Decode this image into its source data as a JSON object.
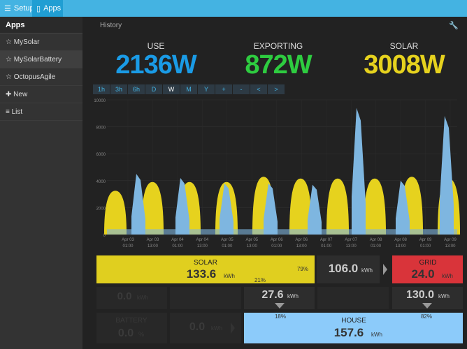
{
  "topbar": {
    "setup": "Setup",
    "apps": "Apps"
  },
  "sidebar": {
    "title": "Apps",
    "items": [
      {
        "label": "MySolar",
        "icon": "☆"
      },
      {
        "label": "MySolarBattery",
        "icon": "☆"
      },
      {
        "label": "OctopusAgile",
        "icon": "☆"
      },
      {
        "label": "New",
        "icon": "✚"
      },
      {
        "label": "List",
        "icon": "≡"
      }
    ]
  },
  "main": {
    "title": "History",
    "stats": {
      "use": {
        "label": "USE",
        "value": "2136W",
        "color": "#1a9be6"
      },
      "exporting": {
        "label": "EXPORTING",
        "value": "872W",
        "color": "#2ecc40"
      },
      "solar": {
        "label": "SOLAR",
        "value": "3008W",
        "color": "#e6d21e"
      }
    },
    "ranges": [
      "1h",
      "3h",
      "6h",
      "D",
      "W",
      "M",
      "Y",
      "+",
      "-",
      "<",
      ">"
    ]
  },
  "chart_data": {
    "type": "area",
    "ylim": [
      0,
      10000
    ],
    "yticks": [
      "0",
      "2000",
      "4000",
      "6000",
      "8000",
      "10000"
    ],
    "xticks": [
      "Apr 03\n01:00",
      "Apr 03\n13:00",
      "Apr 04\n01:00",
      "Apr 04\n13:00",
      "Apr 05\n01:00",
      "Apr 05\n13:00",
      "Apr 06\n01:00",
      "Apr 06\n13:00",
      "Apr 07\n01:00",
      "Apr 07\n13:00",
      "Apr 08\n01:00",
      "Apr 08\n13:00",
      "Apr 09\n01:00",
      "Apr 09\n13:00"
    ],
    "solar_peaks_w": [
      2500,
      3000,
      3000,
      3000,
      3300,
      3200,
      3200,
      3200,
      3300,
      3200
    ],
    "use_peaks_w": [
      4500,
      4200,
      3800,
      3800,
      3700,
      9400,
      4000,
      8800
    ],
    "colors": {
      "solar": "#e6d21e",
      "use": "#7eb6e0"
    }
  },
  "flow": {
    "solar": {
      "label": "SOLAR",
      "value": "133.6",
      "unit": "kWh",
      "pct_a": "79%",
      "pct_b": "21%"
    },
    "export": {
      "value": "106.0",
      "unit": "kWh"
    },
    "grid": {
      "label": "GRID",
      "value": "24.0",
      "unit": "kWh"
    },
    "battery_energy": {
      "value": "0.0",
      "unit": "kWh"
    },
    "to_house_solar": {
      "value": "27.6",
      "unit": "kWh"
    },
    "to_house_grid": {
      "value": "130.0",
      "unit": "kWh"
    },
    "battery": {
      "label": "BATTERY",
      "value": "0.0",
      "unit": "%"
    },
    "battery_flow": {
      "value": "0.0",
      "unit": "kWh"
    },
    "house": {
      "label": "HOUSE",
      "value": "157.6",
      "unit": "kWh",
      "pct_a": "18%",
      "pct_b": "82%"
    }
  }
}
